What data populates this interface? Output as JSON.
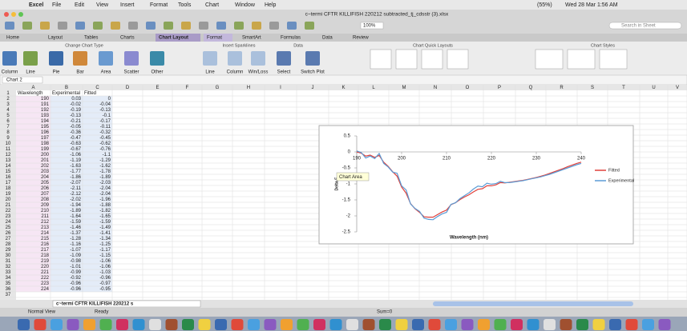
{
  "menu_bar": {
    "app": "Excel",
    "items": [
      "File",
      "Edit",
      "View",
      "Insert",
      "Format",
      "Tools",
      "Chart",
      "Window",
      "Help"
    ],
    "battery": "(55%)",
    "clock": "Wed 28 Mar 1:56 AM"
  },
  "window_title": "c~termi CFTR KILLIFISH 220212 subtracted_tj_cdsstr (3).xlsx",
  "toolbar": {
    "zoom": "100%",
    "search": "Search in Sheet"
  },
  "ribbon": {
    "tabs": [
      "Home",
      "Layout",
      "Tables",
      "Charts",
      "Chart Layout",
      "Format",
      "SmartArt",
      "Formulas",
      "Data",
      "Review"
    ],
    "groups": [
      "Change Chart Type",
      "Insert Sparklines",
      "Data",
      "Chart Quick Layouts",
      "Chart Styles"
    ],
    "buttons": [
      "Column",
      "Line",
      "Pie",
      "Bar",
      "Area",
      "Scatter",
      "Other",
      "Line",
      "Column",
      "Win/Loss",
      "Select",
      "Switch Plot"
    ]
  },
  "formula_bar": {
    "name_box": "Chart 2"
  },
  "sheet": {
    "columns": [
      "A",
      "B",
      "C",
      "D",
      "E",
      "F",
      "G",
      "H",
      "I",
      "J",
      "K",
      "L",
      "M",
      "N",
      "O",
      "P",
      "Q",
      "R",
      "S",
      "T",
      "U",
      "V"
    ],
    "row_numbers": [
      1,
      2,
      3,
      4,
      5,
      6,
      7,
      8,
      9,
      10,
      11,
      12,
      13,
      14,
      15,
      16,
      17,
      18,
      19,
      20,
      21,
      22,
      23,
      24,
      25,
      26,
      27,
      28,
      29,
      30,
      31,
      32,
      33,
      34,
      35,
      36,
      37
    ],
    "header": [
      "Wavelength",
      "Experimental",
      "Fitted"
    ],
    "rows": [
      [
        190,
        0.03,
        0
      ],
      [
        191,
        -0.02,
        -0.04
      ],
      [
        192,
        -0.19,
        -0.13
      ],
      [
        193,
        -0.13,
        -0.1
      ],
      [
        194,
        -0.21,
        -0.17
      ],
      [
        195,
        -0.05,
        -0.11
      ],
      [
        196,
        -0.36,
        -0.32
      ],
      [
        197,
        -0.47,
        -0.45
      ],
      [
        198,
        -0.63,
        -0.62
      ],
      [
        199,
        -0.67,
        -0.76
      ],
      [
        200,
        -1.06,
        -1.1
      ],
      [
        201,
        -1.19,
        -1.29
      ],
      [
        202,
        -1.63,
        -1.62
      ],
      [
        203,
        -1.77,
        -1.78
      ],
      [
        204,
        -1.86,
        -1.89
      ],
      [
        205,
        -2.07,
        -2.03
      ],
      [
        206,
        -2.11,
        -2.04
      ],
      [
        207,
        -2.12,
        -2.04
      ],
      [
        208,
        -2.02,
        -1.96
      ],
      [
        209,
        -1.94,
        -1.88
      ],
      [
        210,
        -1.89,
        -1.82
      ],
      [
        211,
        -1.64,
        -1.65
      ],
      [
        212,
        -1.59,
        -1.59
      ],
      [
        213,
        -1.46,
        -1.49
      ],
      [
        214,
        -1.37,
        -1.41
      ],
      [
        215,
        -1.28,
        -1.34
      ],
      [
        216,
        -1.16,
        -1.25
      ],
      [
        217,
        -1.07,
        -1.17
      ],
      [
        218,
        -1.09,
        -1.15
      ],
      [
        219,
        -0.98,
        -1.06
      ],
      [
        220,
        -1.01,
        -1.06
      ],
      [
        221,
        -0.99,
        -1.03
      ],
      [
        222,
        -0.92,
        -0.96
      ],
      [
        223,
        -0.96,
        -0.97
      ],
      [
        224,
        -0.96,
        -0.95
      ]
    ]
  },
  "sheet_tab": "c~termi CFTR KILLIFISH 220212 s",
  "status_bar": {
    "view": "Normal View",
    "state": "Ready",
    "sum": "Sum=0"
  },
  "chart_data": {
    "type": "line",
    "x_label": "Wavelength (nm)",
    "y_label": "Delta E",
    "tooltip": "Chart Area",
    "x": [
      190,
      191,
      192,
      193,
      194,
      195,
      196,
      197,
      198,
      199,
      200,
      201,
      202,
      203,
      204,
      205,
      206,
      207,
      208,
      209,
      210,
      211,
      212,
      213,
      214,
      215,
      216,
      217,
      218,
      219,
      220,
      221,
      222,
      223,
      224,
      225,
      226,
      227,
      228,
      229,
      230,
      231,
      232,
      233,
      234,
      235,
      236,
      237,
      238,
      239,
      240
    ],
    "series": [
      {
        "name": "Fitted",
        "color": "#e0403a",
        "values": [
          0,
          -0.04,
          -0.13,
          -0.1,
          -0.17,
          -0.11,
          -0.32,
          -0.45,
          -0.62,
          -0.76,
          -1.1,
          -1.29,
          -1.62,
          -1.78,
          -1.89,
          -2.03,
          -2.04,
          -2.04,
          -1.96,
          -1.88,
          -1.82,
          -1.65,
          -1.59,
          -1.49,
          -1.41,
          -1.34,
          -1.25,
          -1.17,
          -1.15,
          -1.06,
          -1.06,
          -1.03,
          -0.96,
          -0.97,
          -0.95,
          -0.93,
          -0.91,
          -0.89,
          -0.86,
          -0.83,
          -0.8,
          -0.76,
          -0.72,
          -0.67,
          -0.62,
          -0.57,
          -0.52,
          -0.46,
          -0.41,
          -0.36,
          -0.32
        ]
      },
      {
        "name": "Experimental",
        "color": "#5b9bd5",
        "values": [
          0.03,
          -0.02,
          -0.19,
          -0.13,
          -0.21,
          -0.05,
          -0.36,
          -0.47,
          -0.63,
          -0.67,
          -1.06,
          -1.19,
          -1.63,
          -1.77,
          -1.86,
          -2.07,
          -2.11,
          -2.12,
          -2.02,
          -1.94,
          -1.89,
          -1.64,
          -1.59,
          -1.46,
          -1.37,
          -1.28,
          -1.16,
          -1.07,
          -1.09,
          -0.98,
          -1.01,
          -0.99,
          -0.92,
          -0.96,
          -0.96,
          -0.94,
          -0.92,
          -0.9,
          -0.87,
          -0.84,
          -0.81,
          -0.78,
          -0.74,
          -0.7,
          -0.65,
          -0.6,
          -0.55,
          -0.5,
          -0.45,
          -0.4,
          -0.36
        ]
      }
    ],
    "xlim": [
      190,
      240
    ],
    "ylim": [
      -2.5,
      0.5
    ],
    "xticks": [
      190,
      200,
      210,
      220,
      230,
      240
    ],
    "yticks": [
      0.5,
      0,
      -0.5,
      -1,
      -1.5,
      -2,
      -2.5
    ],
    "grid": false,
    "legend": "right"
  }
}
